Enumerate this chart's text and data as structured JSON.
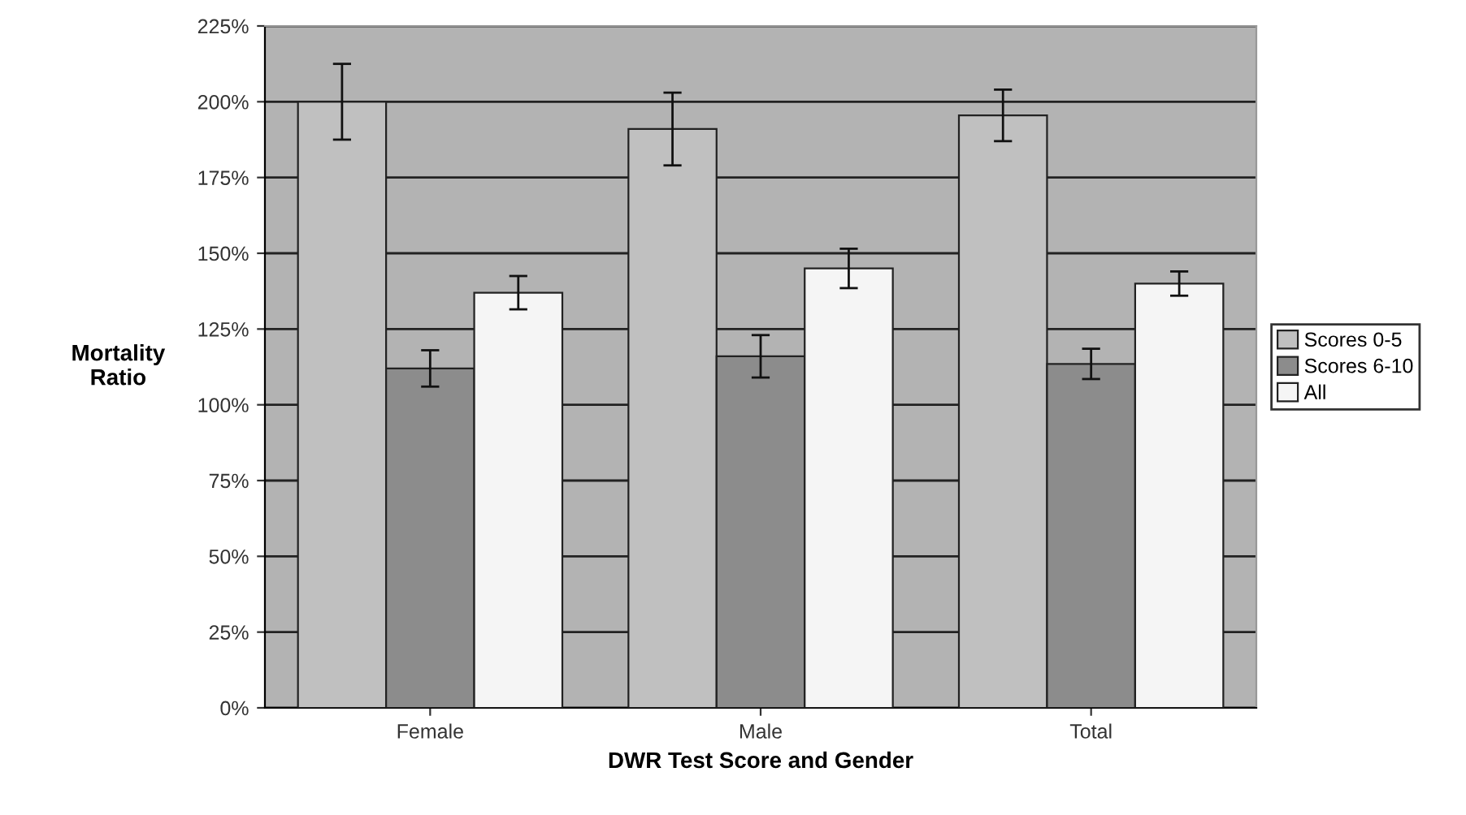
{
  "chart_data": {
    "type": "bar",
    "xlabel": "DWR Test Score and Gender",
    "ylabel": "Mortality\nRatio",
    "categories": [
      "Female",
      "Male",
      "Total"
    ],
    "series": [
      {
        "name": "Scores 0-5",
        "color": "#c0c0c0",
        "values": [
          200,
          191,
          195.5
        ],
        "errors": [
          12.5,
          12,
          8.5
        ]
      },
      {
        "name": "Scores 6-10",
        "color": "#8c8c8c",
        "values": [
          112,
          116,
          113.5
        ],
        "errors": [
          6,
          7,
          5
        ]
      },
      {
        "name": "All",
        "color": "#f5f5f5",
        "values": [
          137,
          145,
          140
        ],
        "errors": [
          5.5,
          6.5,
          4
        ]
      }
    ],
    "ylim": [
      0,
      225
    ],
    "yticks": [
      {
        "value": 0,
        "label": "0%"
      },
      {
        "value": 25,
        "label": "25%"
      },
      {
        "value": 50,
        "label": "50%"
      },
      {
        "value": 75,
        "label": "75%"
      },
      {
        "value": 100,
        "label": "100%"
      },
      {
        "value": 125,
        "label": "125%"
      },
      {
        "value": 150,
        "label": "150%"
      },
      {
        "value": 175,
        "label": "175%"
      },
      {
        "value": 200,
        "label": "200%"
      },
      {
        "value": 225,
        "label": "225%"
      }
    ],
    "grid": "y",
    "legend": "right"
  }
}
